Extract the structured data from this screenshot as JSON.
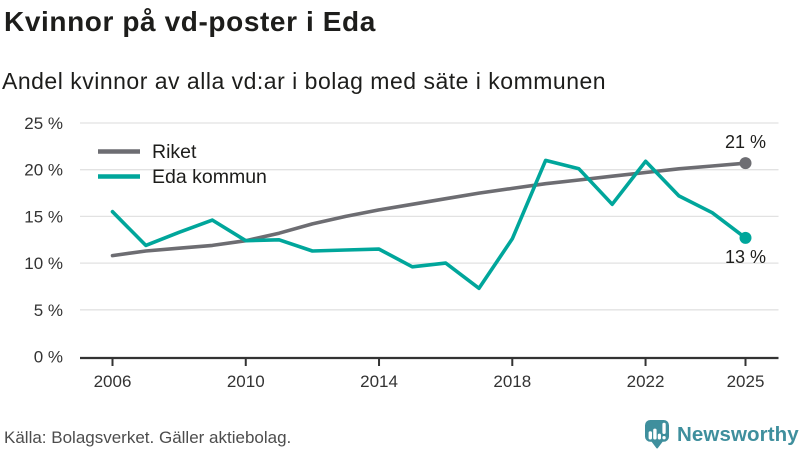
{
  "header": {
    "title": "Kvinnor på vd-poster i Eda",
    "subtitle": "Andel kvinnor av alla vd:ar i bolag med säte i kommunen"
  },
  "footer": {
    "source": "Källa: Bolagsverket. Gäller aktiebolag.",
    "brand": "Newsworthy"
  },
  "colors": {
    "riket": "#6d6d72",
    "eda": "#00a69b",
    "axis": "#333333",
    "grid": "#e2e2e2",
    "text": "#1d1d1b",
    "brand_teal": "#3f8f9d"
  },
  "chart_data": {
    "type": "line",
    "title": "Kvinnor på vd-poster i Eda",
    "subtitle": "Andel kvinnor av alla vd:ar i bolag med säte i kommunen",
    "x": [
      2006,
      2007,
      2008,
      2009,
      2010,
      2011,
      2012,
      2013,
      2014,
      2015,
      2016,
      2017,
      2018,
      2019,
      2020,
      2021,
      2022,
      2023,
      2024,
      2025
    ],
    "series": [
      {
        "name": "Riket",
        "color": "#6d6d72",
        "values": [
          10.8,
          11.3,
          11.6,
          11.9,
          12.4,
          13.2,
          14.2,
          15.0,
          15.7,
          16.3,
          16.9,
          17.5,
          18.0,
          18.5,
          18.9,
          19.3,
          19.7,
          20.1,
          20.4,
          20.7
        ],
        "end_label": "21 %"
      },
      {
        "name": "Eda kommun",
        "color": "#00a69b",
        "values": [
          15.5,
          11.9,
          13.3,
          14.6,
          12.4,
          12.5,
          11.3,
          11.4,
          11.5,
          9.6,
          10.0,
          7.3,
          12.6,
          21.0,
          20.1,
          16.3,
          20.9,
          17.2,
          15.4,
          12.7
        ],
        "end_label": "13 %"
      }
    ],
    "xticks": [
      2006,
      2010,
      2014,
      2018,
      2022,
      2025
    ],
    "yticks": [
      0,
      5,
      10,
      15,
      20,
      25
    ],
    "ytick_suffix": " %",
    "ylim": [
      0,
      25
    ],
    "xlabel": "",
    "ylabel": "",
    "grid": true,
    "legend_position": "top-left"
  }
}
